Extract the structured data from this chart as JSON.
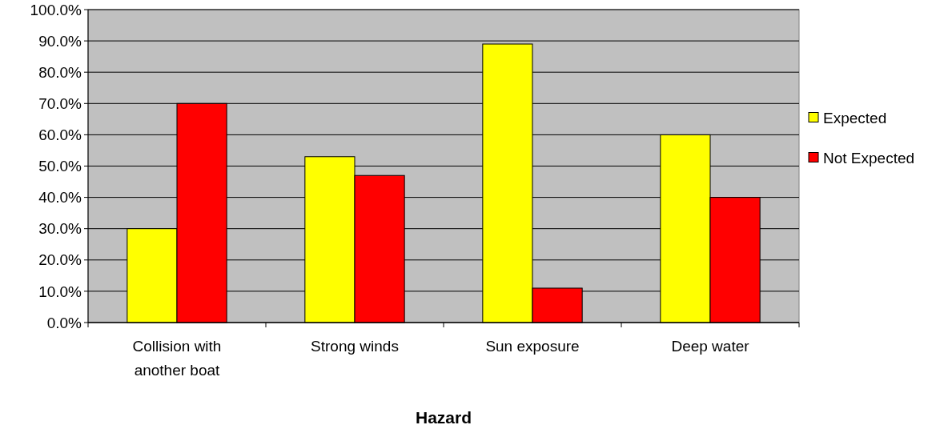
{
  "chart_data": {
    "type": "bar",
    "xlabel": "Hazard",
    "categories": [
      "Collision with another boat",
      "Strong winds",
      "Sun exposure",
      "Deep water"
    ],
    "series": [
      {
        "name": "Expected",
        "color": "#ffff00",
        "values": [
          30,
          53,
          89,
          60
        ]
      },
      {
        "name": "Not Expected",
        "color": "#ff0000",
        "values": [
          70,
          47,
          11,
          40
        ]
      }
    ],
    "ylim": [
      0,
      100
    ],
    "yticks": [
      {
        "value": 0,
        "label": "0.0%"
      },
      {
        "value": 10,
        "label": "10.0%"
      },
      {
        "value": 20,
        "label": "20.0%"
      },
      {
        "value": 30,
        "label": "30.0%"
      },
      {
        "value": 40,
        "label": "40.0%"
      },
      {
        "value": 50,
        "label": "50.0%"
      },
      {
        "value": 60,
        "label": "60.0%"
      },
      {
        "value": 70,
        "label": "70.0%"
      },
      {
        "value": 80,
        "label": "80.0%"
      },
      {
        "value": 90,
        "label": "90.0%"
      },
      {
        "value": 100,
        "label": "100.0%"
      }
    ],
    "grid": "y",
    "legend": "right"
  }
}
